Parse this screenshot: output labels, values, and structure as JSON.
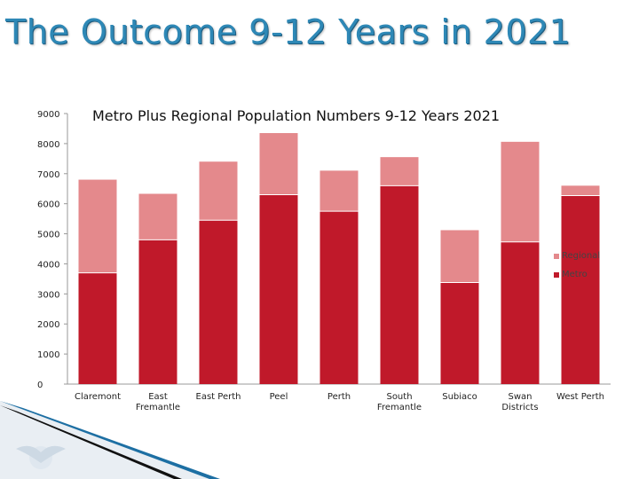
{
  "slide": {
    "title": "The Outcome 9-12 Years in 2021"
  },
  "chart_data": {
    "type": "bar",
    "stacked": true,
    "title": "Metro Plus Regional Population Numbers 9-12 Years 2021",
    "xlabel": "",
    "ylabel": "",
    "categories": [
      "Claremont",
      "East Fremantle",
      "East Perth",
      "Peel",
      "Perth",
      "South Fremantle",
      "Subiaco",
      "Swan Districts",
      "West Perth"
    ],
    "series": [
      {
        "name": "Metro",
        "color": "#c0192a",
        "values": [
          3700,
          4800,
          5450,
          6300,
          5750,
          6600,
          3380,
          4730,
          6270
        ]
      },
      {
        "name": "Regional",
        "color": "#e4898c",
        "values": [
          3100,
          1530,
          1950,
          2050,
          1350,
          950,
          1740,
          3330,
          330
        ]
      }
    ],
    "ylim": [
      0,
      9000
    ],
    "yticks": [
      "0",
      "1000",
      "2000",
      "3000",
      "4000",
      "5000",
      "6000",
      "7000",
      "8000",
      "9000"
    ],
    "grid": false,
    "legend": {
      "position": "right",
      "order": [
        "Regional",
        "Metro"
      ]
    }
  }
}
